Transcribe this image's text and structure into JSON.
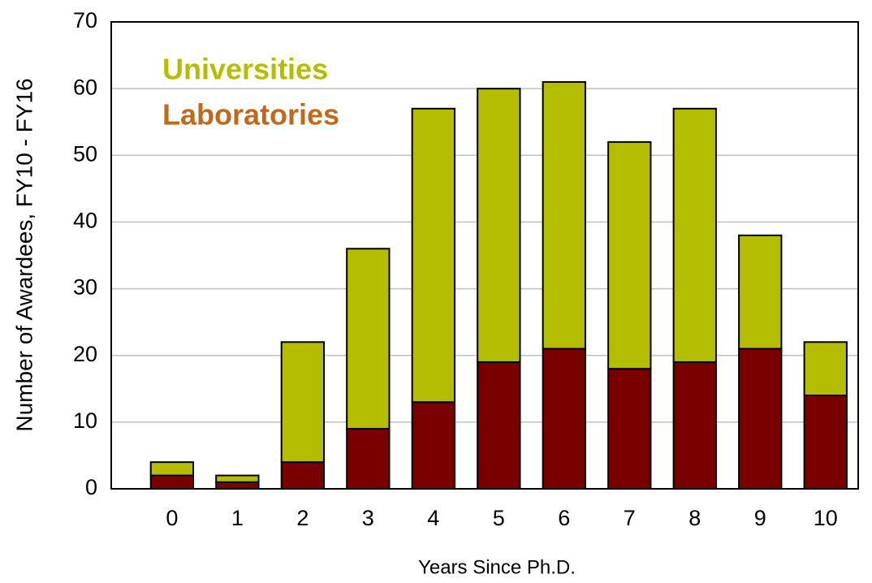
{
  "chart_data": {
    "type": "stacked_bar",
    "x": [
      0,
      1,
      2,
      3,
      4,
      5,
      6,
      7,
      8,
      9,
      10
    ],
    "xlim": [
      -0.93,
      10.5
    ],
    "xlabel": "Years Since Ph.D.",
    "ylabel": "Number of Awardees, FY10 - FY16",
    "ylim": [
      0,
      70
    ],
    "yticks": [
      0,
      10,
      20,
      30,
      40,
      50,
      60,
      70
    ],
    "grid": true,
    "legend": "upper left",
    "series": [
      {
        "name": "Laboratories",
        "color": "#7a0000",
        "label_color": "#c0691c",
        "values": [
          2,
          1,
          4,
          9,
          13,
          19,
          21,
          18,
          19,
          21,
          14
        ]
      },
      {
        "name": "Universities",
        "color": "#b5bd00",
        "label_color": "#b5bd00",
        "values": [
          2,
          1,
          18,
          27,
          44,
          41,
          40,
          34,
          38,
          17,
          8
        ]
      }
    ]
  }
}
